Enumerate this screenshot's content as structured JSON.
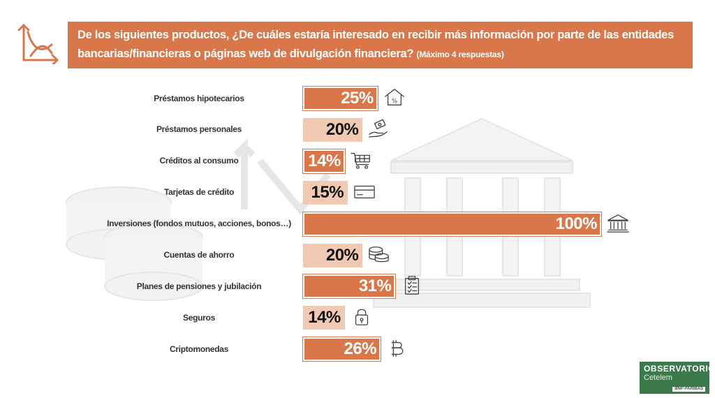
{
  "header": {
    "question": "De los siguientes productos, ¿De cuáles estaría interesado en recibir más información por parte de las entidades bancarias/financieras o páginas web de divulgación financiera?",
    "note": "(Máximo 4 respuestas)"
  },
  "logo": {
    "line1": "OBSERVATORIO",
    "line2": "Cetelem",
    "line3": "BNP PARIBAS"
  },
  "colors": {
    "dark_bar": "#d9774a",
    "light_bar": "#f2c9b3",
    "header": "#d9774a",
    "watermark": "#e8e8e8"
  },
  "chart_data": {
    "type": "bar",
    "orientation": "horizontal",
    "title": "De los siguientes productos, ¿De cuáles estaría interesado en recibir más información por parte de las entidades bancarias/financieras o páginas web de divulgación financiera? (Máximo 4 respuestas)",
    "categories": [
      "Préstamos hipotecarios",
      "Préstamos personales",
      "Créditos al consumo",
      "Tarjetas de crédito",
      "Inversiones (fondos mutuos, acciones, bonos…)",
      "Cuentas de ahorro",
      "Planes de pensiones y jubilación",
      "Seguros",
      "Criptomonedas"
    ],
    "values": [
      25,
      20,
      14,
      15,
      100,
      20,
      31,
      14,
      26
    ],
    "value_labels": [
      "25%",
      "20%",
      "14%",
      "15%",
      "100%",
      "20%",
      "31%",
      "14%",
      "26%"
    ],
    "bar_tone": [
      "dark",
      "light",
      "dark",
      "light",
      "dark",
      "light",
      "dark",
      "light",
      "dark"
    ],
    "icons": [
      "house-percent-icon",
      "hand-money-icon",
      "shopping-cart-icon",
      "credit-card-icon",
      "bank-icon",
      "coins-icon",
      "clipboard-icon",
      "padlock-icon",
      "bitcoin-icon"
    ],
    "xlim": [
      0,
      100
    ],
    "grid": false,
    "legend": "none"
  }
}
